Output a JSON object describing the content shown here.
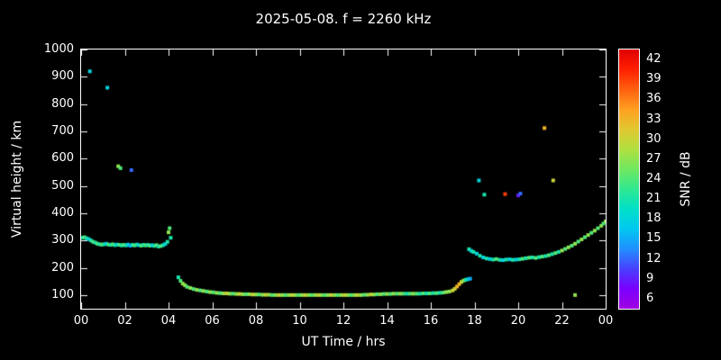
{
  "title": "2025-05-08. f = 2260 kHz",
  "axes": {
    "x_label": "UT Time / hrs",
    "y_label": "Virtual height / km",
    "x_ticks": [
      "00",
      "02",
      "04",
      "06",
      "08",
      "10",
      "12",
      "14",
      "16",
      "18",
      "20",
      "22",
      "00"
    ],
    "y_ticks": [
      100,
      200,
      300,
      400,
      500,
      600,
      700,
      800,
      900,
      1000
    ]
  },
  "colorbar": {
    "label": "SNR / dB",
    "ticks": [
      42,
      39,
      36,
      33,
      30,
      27,
      24,
      21,
      18,
      15,
      12,
      9,
      6
    ],
    "colormap": [
      {
        "v": 4.5,
        "c": "#a000e0"
      },
      {
        "v": 7.5,
        "c": "#7a00ff"
      },
      {
        "v": 10.5,
        "c": "#4840ff"
      },
      {
        "v": 13.5,
        "c": "#2090ff"
      },
      {
        "v": 16.5,
        "c": "#00c8f0"
      },
      {
        "v": 19.5,
        "c": "#00e0c8"
      },
      {
        "v": 22.5,
        "c": "#30e890"
      },
      {
        "v": 25.5,
        "c": "#70e860"
      },
      {
        "v": 28.5,
        "c": "#b0e040"
      },
      {
        "v": 31.5,
        "c": "#e0c830"
      },
      {
        "v": 34.5,
        "c": "#ffa020"
      },
      {
        "v": 37.5,
        "c": "#ff6010"
      },
      {
        "v": 40.5,
        "c": "#ff2000"
      },
      {
        "v": 43.5,
        "c": "#e00000"
      }
    ]
  },
  "chart_data": {
    "type": "scatter",
    "title": "2025-05-08. f = 2260 kHz",
    "xlabel": "UT Time / hrs",
    "ylabel": "Virtual height / km",
    "zlabel": "SNR / dB",
    "xlim": [
      0,
      24
    ],
    "ylim": [
      50,
      1000
    ],
    "zlim": [
      4.5,
      43.5
    ],
    "point_units": [
      "UT hours",
      "km",
      "dB"
    ],
    "points": [
      [
        0.05,
        310,
        21
      ],
      [
        0.15,
        312,
        24
      ],
      [
        0.25,
        308,
        21
      ],
      [
        0.35,
        305,
        18
      ],
      [
        0.45,
        300,
        21
      ],
      [
        0.55,
        295,
        24
      ],
      [
        0.65,
        292,
        21
      ],
      [
        0.75,
        288,
        24
      ],
      [
        0.85,
        286,
        21
      ],
      [
        0.95,
        285,
        24
      ],
      [
        1.05,
        286,
        21
      ],
      [
        1.15,
        288,
        18
      ],
      [
        1.25,
        285,
        24
      ],
      [
        1.35,
        284,
        21
      ],
      [
        1.45,
        286,
        24
      ],
      [
        1.55,
        283,
        21
      ],
      [
        1.65,
        285,
        18
      ],
      [
        1.75,
        284,
        24
      ],
      [
        1.85,
        282,
        21
      ],
      [
        1.95,
        284,
        24
      ],
      [
        2.05,
        282,
        21
      ],
      [
        2.15,
        285,
        18
      ],
      [
        2.25,
        281,
        15
      ],
      [
        2.35,
        284,
        21
      ],
      [
        2.45,
        282,
        24
      ],
      [
        2.55,
        285,
        21
      ],
      [
        2.65,
        283,
        18
      ],
      [
        2.75,
        281,
        24
      ],
      [
        2.85,
        284,
        21
      ],
      [
        2.95,
        282,
        24
      ],
      [
        3.05,
        284,
        21
      ],
      [
        3.15,
        281,
        24
      ],
      [
        3.25,
        283,
        18
      ],
      [
        3.35,
        280,
        21
      ],
      [
        3.45,
        283,
        24
      ],
      [
        3.55,
        278,
        21
      ],
      [
        3.65,
        280,
        24
      ],
      [
        3.75,
        283,
        21
      ],
      [
        3.85,
        287,
        18
      ],
      [
        3.95,
        295,
        21
      ],
      [
        4.0,
        330,
        27
      ],
      [
        4.05,
        345,
        24
      ],
      [
        4.1,
        310,
        21
      ],
      [
        0.4,
        920,
        18
      ],
      [
        1.2,
        860,
        18
      ],
      [
        1.7,
        572,
        27
      ],
      [
        1.8,
        565,
        24
      ],
      [
        2.3,
        558,
        12
      ],
      [
        4.45,
        165,
        21
      ],
      [
        4.55,
        152,
        24
      ],
      [
        4.65,
        142,
        27
      ],
      [
        4.75,
        136,
        27
      ],
      [
        4.85,
        130,
        24
      ],
      [
        5.0,
        126,
        27
      ],
      [
        5.15,
        122,
        24
      ],
      [
        5.3,
        119,
        27
      ],
      [
        5.45,
        117,
        24
      ],
      [
        5.6,
        115,
        27
      ],
      [
        5.75,
        113,
        24
      ],
      [
        5.9,
        111,
        27
      ],
      [
        6.05,
        110,
        24
      ],
      [
        6.2,
        108,
        27
      ],
      [
        6.35,
        107,
        24
      ],
      [
        6.5,
        106,
        27
      ],
      [
        6.65,
        106,
        30
      ],
      [
        6.8,
        105,
        27
      ],
      [
        6.95,
        105,
        24
      ],
      [
        7.1,
        104,
        27
      ],
      [
        7.25,
        104,
        30
      ],
      [
        7.4,
        103,
        27
      ],
      [
        7.55,
        103,
        24
      ],
      [
        7.7,
        103,
        27
      ],
      [
        7.85,
        102,
        30
      ],
      [
        8.0,
        102,
        27
      ],
      [
        8.15,
        102,
        24
      ],
      [
        8.3,
        101,
        27
      ],
      [
        8.45,
        101,
        30
      ],
      [
        8.6,
        101,
        27
      ],
      [
        8.75,
        100,
        24
      ],
      [
        8.9,
        100,
        27
      ],
      [
        9.05,
        100,
        30
      ],
      [
        9.2,
        100,
        27
      ],
      [
        9.35,
        100,
        24
      ],
      [
        9.5,
        100,
        27
      ],
      [
        9.65,
        100,
        30
      ],
      [
        9.8,
        100,
        27
      ],
      [
        9.95,
        100,
        24
      ],
      [
        10.1,
        100,
        27
      ],
      [
        10.25,
        100,
        30
      ],
      [
        10.4,
        100,
        27
      ],
      [
        10.55,
        100,
        24
      ],
      [
        10.7,
        100,
        27
      ],
      [
        10.85,
        100,
        30
      ],
      [
        11.0,
        100,
        27
      ],
      [
        11.15,
        100,
        24
      ],
      [
        11.3,
        100,
        27
      ],
      [
        11.45,
        100,
        30
      ],
      [
        11.6,
        100,
        27
      ],
      [
        11.75,
        100,
        24
      ],
      [
        11.9,
        100,
        27
      ],
      [
        12.05,
        100,
        30
      ],
      [
        12.2,
        100,
        27
      ],
      [
        12.35,
        100,
        24
      ],
      [
        12.5,
        100,
        27
      ],
      [
        12.65,
        100,
        30
      ],
      [
        12.8,
        100,
        27
      ],
      [
        12.95,
        101,
        24
      ],
      [
        13.1,
        101,
        27
      ],
      [
        13.25,
        102,
        30
      ],
      [
        13.4,
        102,
        27
      ],
      [
        13.55,
        103,
        24
      ],
      [
        13.7,
        103,
        27
      ],
      [
        13.85,
        104,
        24
      ],
      [
        14.0,
        104,
        27
      ],
      [
        14.15,
        104,
        24
      ],
      [
        14.3,
        105,
        27
      ],
      [
        14.45,
        105,
        24
      ],
      [
        14.6,
        105,
        27
      ],
      [
        14.75,
        105,
        24
      ],
      [
        14.9,
        105,
        21
      ],
      [
        15.05,
        105,
        24
      ],
      [
        15.2,
        105,
        27
      ],
      [
        15.35,
        105,
        24
      ],
      [
        15.5,
        105,
        21
      ],
      [
        15.65,
        106,
        24
      ],
      [
        15.8,
        106,
        21
      ],
      [
        15.95,
        106,
        24
      ],
      [
        16.1,
        107,
        21
      ],
      [
        16.25,
        107,
        24
      ],
      [
        16.4,
        108,
        21
      ],
      [
        16.55,
        109,
        24
      ],
      [
        16.7,
        111,
        27
      ],
      [
        16.85,
        113,
        27
      ],
      [
        17.0,
        117,
        30
      ],
      [
        17.1,
        123,
        30
      ],
      [
        17.2,
        131,
        33
      ],
      [
        17.3,
        140,
        33
      ],
      [
        17.4,
        148,
        30
      ],
      [
        17.5,
        153,
        27
      ],
      [
        17.6,
        156,
        21
      ],
      [
        17.7,
        158,
        18
      ],
      [
        17.8,
        160,
        15
      ],
      [
        17.75,
        268,
        21
      ],
      [
        17.85,
        262,
        18
      ],
      [
        17.95,
        258,
        21
      ],
      [
        18.1,
        252,
        18
      ],
      [
        18.25,
        244,
        21
      ],
      [
        18.4,
        238,
        18
      ],
      [
        18.55,
        234,
        21
      ],
      [
        18.7,
        232,
        18
      ],
      [
        18.85,
        230,
        21
      ],
      [
        19.0,
        232,
        24
      ],
      [
        19.15,
        229,
        21
      ],
      [
        19.3,
        228,
        18
      ],
      [
        19.45,
        230,
        21
      ],
      [
        19.6,
        231,
        18
      ],
      [
        19.75,
        229,
        21
      ],
      [
        19.9,
        230,
        18
      ],
      [
        20.05,
        231,
        21
      ],
      [
        20.2,
        233,
        24
      ],
      [
        20.35,
        235,
        21
      ],
      [
        20.5,
        237,
        24
      ],
      [
        20.65,
        238,
        21
      ],
      [
        20.8,
        236,
        24
      ],
      [
        20.95,
        239,
        21
      ],
      [
        21.1,
        241,
        24
      ],
      [
        21.25,
        243,
        21
      ],
      [
        21.4,
        246,
        24
      ],
      [
        21.55,
        250,
        21
      ],
      [
        21.7,
        254,
        24
      ],
      [
        21.85,
        258,
        21
      ],
      [
        22.0,
        263,
        27
      ],
      [
        22.15,
        269,
        24
      ],
      [
        22.3,
        275,
        27
      ],
      [
        22.45,
        281,
        24
      ],
      [
        22.6,
        288,
        27
      ],
      [
        22.75,
        296,
        24
      ],
      [
        22.9,
        304,
        27
      ],
      [
        23.05,
        312,
        24
      ],
      [
        23.2,
        320,
        27
      ],
      [
        23.35,
        328,
        24
      ],
      [
        23.5,
        336,
        27
      ],
      [
        23.65,
        345,
        24
      ],
      [
        23.8,
        354,
        27
      ],
      [
        23.9,
        362,
        24
      ],
      [
        24.0,
        370,
        27
      ],
      [
        18.2,
        520,
        18
      ],
      [
        18.45,
        468,
        21
      ],
      [
        19.4,
        470,
        39
      ],
      [
        20.0,
        465,
        9
      ],
      [
        20.1,
        472,
        12
      ],
      [
        21.2,
        712,
        33
      ],
      [
        21.6,
        520,
        30
      ],
      [
        22.6,
        100,
        27
      ]
    ]
  }
}
